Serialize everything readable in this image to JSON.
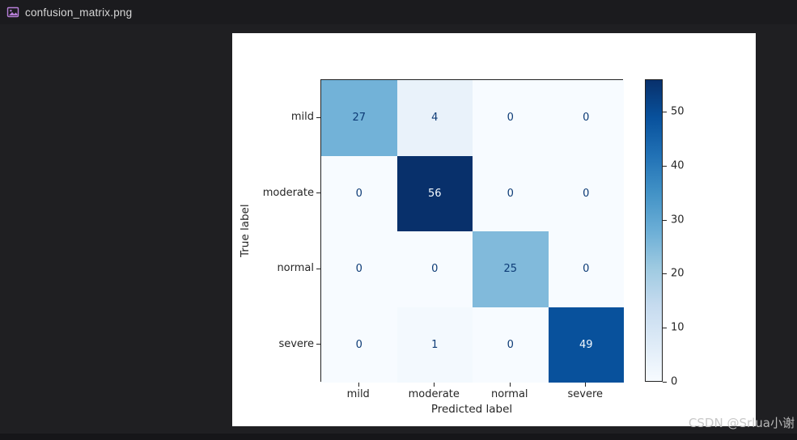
{
  "tab": {
    "filename": "confusion_matrix.png",
    "icon": "image-file-icon"
  },
  "watermark": {
    "text": "CSDN @Srlua小谢"
  },
  "chart_data": {
    "type": "heatmap",
    "subtype": "confusion-matrix",
    "title": "",
    "xlabel": "Predicted label",
    "ylabel": "True label",
    "x_categories": [
      "mild",
      "moderate",
      "normal",
      "severe"
    ],
    "y_categories": [
      "mild",
      "moderate",
      "normal",
      "severe"
    ],
    "matrix": [
      [
        27,
        4,
        0,
        0
      ],
      [
        0,
        56,
        0,
        0
      ],
      [
        0,
        0,
        25,
        0
      ],
      [
        0,
        1,
        0,
        49
      ]
    ],
    "vmin": 0,
    "vmax": 56,
    "colormap": "Blues",
    "colorbar_ticks": [
      0,
      10,
      20,
      30,
      40,
      50
    ],
    "legend_position": "colorbar-right",
    "grid": false
  },
  "colors": {
    "page_bg": "#1f1f22",
    "tabbar_bg": "#1b1b1e",
    "figure_bg": "#ffffff",
    "tab_text": "#d7d7d7",
    "file_icon": "#b87fd9",
    "axis_text": "#262626",
    "cell_text_dark": "#0d3b76",
    "cell_text_light": "#f3f9fe",
    "watermark_text": "#c3c3c3",
    "bottom_strip": "#161619"
  }
}
